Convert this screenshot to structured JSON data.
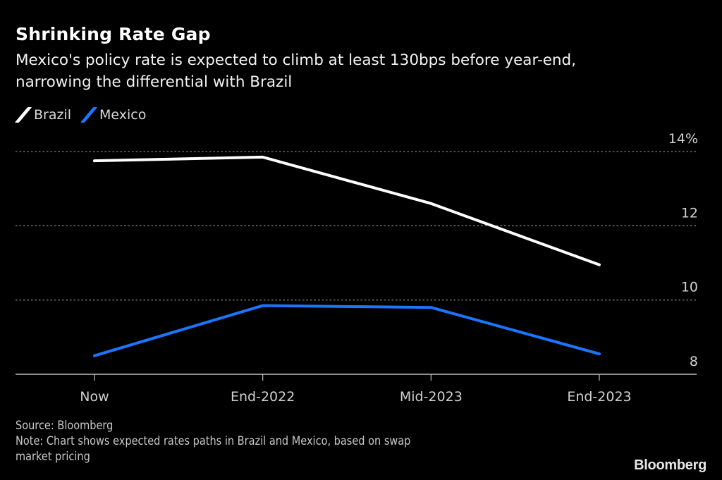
{
  "header": {
    "title": "Shrinking Rate Gap",
    "subtitle_line1": "Mexico's policy rate is expected to climb at least 130bps before year-end,",
    "subtitle_line2": "narrowing the differential with Brazil"
  },
  "colors": {
    "background": "#000000",
    "brazil": "#ffffff",
    "mexico": "#1a75ff",
    "grid": "#7f7f7f",
    "axis": "#bfbfbf"
  },
  "chart_data": {
    "type": "line",
    "title": "Shrinking Rate Gap",
    "subtitle": "Mexico's policy rate is expected to climb at least 130bps before year-end, narrowing the differential with Brazil",
    "categories": [
      "Now",
      "End-2022",
      "Mid-2023",
      "End-2023"
    ],
    "series": [
      {
        "name": "Brazil",
        "color": "#ffffff",
        "values": [
          13.75,
          13.85,
          12.6,
          10.95
        ]
      },
      {
        "name": "Mexico",
        "color": "#1a75ff",
        "values": [
          8.5,
          9.85,
          9.8,
          8.55
        ]
      }
    ],
    "xlabel": "",
    "ylabel": "",
    "ylim": [
      8,
      14
    ],
    "yticks": [
      8,
      10,
      12,
      14
    ],
    "ytick_labels": [
      "8",
      "10",
      "12",
      "14%"
    ],
    "y_axis_side": "right",
    "grid": true,
    "grid_style": "dotted",
    "legend_position": "top-left"
  },
  "footer": {
    "source": "Source: Bloomberg",
    "note_line1": "Note: Chart shows expected rates paths in Brazil and Mexico, based on swap",
    "note_line2": "market pricing",
    "brand": "Bloomberg"
  }
}
